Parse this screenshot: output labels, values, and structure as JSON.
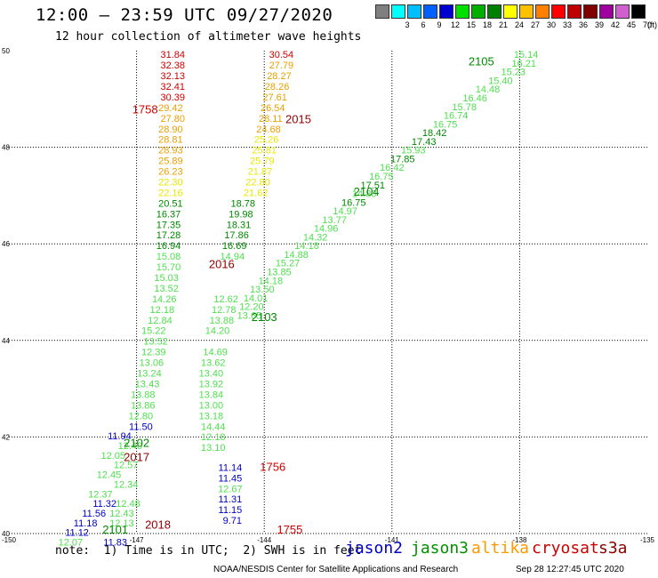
{
  "header": {
    "title": "12:00 – 23:59 UTC 09/27/2020",
    "subtitle": "12 hour collection of altimeter wave heights"
  },
  "legend": {
    "unit": "(ft)",
    "items": [
      {
        "label": "",
        "color": "#7f7f7f"
      },
      {
        "label": "3",
        "color": "#00ffff"
      },
      {
        "label": "6",
        "color": "#00bfff"
      },
      {
        "label": "9",
        "color": "#0060ff"
      },
      {
        "label": "12",
        "color": "#0000d0"
      },
      {
        "label": "15",
        "color": "#00e000"
      },
      {
        "label": "18",
        "color": "#00b000"
      },
      {
        "label": "21",
        "color": "#008000"
      },
      {
        "label": "24",
        "color": "#ffff00"
      },
      {
        "label": "27",
        "color": "#ffc000"
      },
      {
        "label": "30",
        "color": "#ff8000"
      },
      {
        "label": "33",
        "color": "#ff0000"
      },
      {
        "label": "36",
        "color": "#c00000"
      },
      {
        "label": "39",
        "color": "#800000"
      },
      {
        "label": "42",
        "color": "#a000a0"
      },
      {
        "label": "45",
        "color": "#d060d0"
      },
      {
        "label": "70",
        "color": "#000000"
      }
    ]
  },
  "map": {
    "xticks": [
      "-150",
      "-147",
      "-144",
      "-141",
      "-138",
      "-135"
    ],
    "yticks": [
      "50",
      "48",
      "46",
      "44",
      "42",
      "40"
    ],
    "colors": {
      "j2": "#0000c8",
      "j3light": "#50e050",
      "j3dark": "#008800",
      "alt_yellow": "#e8e800",
      "alt_orange": "#e8a000",
      "red": "#d00000",
      "darkred": "#900000"
    },
    "track_labels": [
      {
        "text": "1758",
        "lon": -146.8,
        "lat": 48.7,
        "color": "red"
      },
      {
        "text": "2015",
        "lon": -143.2,
        "lat": 48.5,
        "color": "darkred"
      },
      {
        "text": "2105",
        "lon": -138.9,
        "lat": 49.7,
        "color": "j3dark"
      },
      {
        "text": "2104",
        "lon": -141.6,
        "lat": 47.0,
        "color": "j3dark"
      },
      {
        "text": "2016",
        "lon": -145.0,
        "lat": 45.5,
        "color": "darkred"
      },
      {
        "text": "2103",
        "lon": -144.0,
        "lat": 44.4,
        "color": "j3dark"
      },
      {
        "text": "1756",
        "lon": -143.8,
        "lat": 41.3,
        "color": "red"
      },
      {
        "text": "2102",
        "lon": -147.0,
        "lat": 41.8,
        "color": "j3dark"
      },
      {
        "text": "2017",
        "lon": -147.0,
        "lat": 41.5,
        "color": "darkred"
      },
      {
        "text": "2101",
        "lon": -147.5,
        "lat": 40.0,
        "color": "j3dark"
      },
      {
        "text": "2018",
        "lon": -146.5,
        "lat": 40.1,
        "color": "darkred"
      },
      {
        "text": "1755",
        "lon": -143.4,
        "lat": 40.0,
        "color": "red"
      }
    ],
    "track_1758": [
      {
        "v": "31.84",
        "lon": -146.15,
        "lat": 49.85,
        "color": "red"
      },
      {
        "v": "32.38",
        "lon": -146.15,
        "lat": 49.63,
        "color": "red"
      },
      {
        "v": "32.13",
        "lon": -146.15,
        "lat": 49.41,
        "color": "red"
      },
      {
        "v": "32.41",
        "lon": -146.15,
        "lat": 49.19,
        "color": "red"
      },
      {
        "v": "30.39",
        "lon": -146.15,
        "lat": 48.97,
        "color": "red"
      },
      {
        "v": "29.42",
        "lon": -146.2,
        "lat": 48.75,
        "color": "alt_orange"
      },
      {
        "v": "27.80",
        "lon": -146.15,
        "lat": 48.53,
        "color": "alt_orange"
      },
      {
        "v": "28.90",
        "lon": -146.2,
        "lat": 48.31,
        "color": "alt_orange"
      },
      {
        "v": "28.81",
        "lon": -146.2,
        "lat": 48.09,
        "color": "alt_orange"
      },
      {
        "v": "28.93",
        "lon": -146.2,
        "lat": 47.87,
        "color": "alt_orange"
      },
      {
        "v": "25.89",
        "lon": -146.2,
        "lat": 47.65,
        "color": "alt_orange"
      },
      {
        "v": "26.23",
        "lon": -146.2,
        "lat": 47.43,
        "color": "alt_orange"
      },
      {
        "v": "22.30",
        "lon": -146.2,
        "lat": 47.21,
        "color": "alt_yellow"
      },
      {
        "v": "22.16",
        "lon": -146.2,
        "lat": 46.99,
        "color": "alt_yellow"
      },
      {
        "v": "20.51",
        "lon": -146.2,
        "lat": 46.77,
        "color": "j3dark"
      },
      {
        "v": "16.37",
        "lon": -146.25,
        "lat": 46.55,
        "color": "j3dark"
      },
      {
        "v": "17.35",
        "lon": -146.25,
        "lat": 46.33,
        "color": "j3dark"
      },
      {
        "v": "17.28",
        "lon": -146.25,
        "lat": 46.11,
        "color": "j3dark"
      },
      {
        "v": "16.94",
        "lon": -146.25,
        "lat": 45.89,
        "color": "j3dark"
      },
      {
        "v": "15.08",
        "lon": -146.25,
        "lat": 45.67,
        "color": "j3light"
      },
      {
        "v": "15.70",
        "lon": -146.25,
        "lat": 45.45,
        "color": "j3light"
      },
      {
        "v": "15.03",
        "lon": -146.3,
        "lat": 45.23,
        "color": "j3light"
      },
      {
        "v": "13.52",
        "lon": -146.3,
        "lat": 45.01,
        "color": "j3light"
      },
      {
        "v": "14.26",
        "lon": -146.35,
        "lat": 44.79,
        "color": "j3light"
      },
      {
        "v": "12.18",
        "lon": -146.4,
        "lat": 44.57,
        "color": "j3light"
      },
      {
        "v": "12.84",
        "lon": -146.45,
        "lat": 44.35,
        "color": "j3light"
      },
      {
        "v": "15.22",
        "lon": -146.6,
        "lat": 44.13,
        "color": "j3light"
      },
      {
        "v": "13.52",
        "lon": -146.55,
        "lat": 43.91,
        "color": "j3light"
      },
      {
        "v": "12.39",
        "lon": -146.6,
        "lat": 43.69,
        "color": "j3light"
      },
      {
        "v": "13.06",
        "lon": -146.65,
        "lat": 43.47,
        "color": "j3light"
      },
      {
        "v": "13.24",
        "lon": -146.7,
        "lat": 43.25,
        "color": "j3light"
      },
      {
        "v": "13.43",
        "lon": -146.75,
        "lat": 43.03,
        "color": "j3light"
      },
      {
        "v": "13.88",
        "lon": -146.85,
        "lat": 42.81,
        "color": "j3light"
      },
      {
        "v": "13.86",
        "lon": -146.85,
        "lat": 42.59,
        "color": "j3light"
      },
      {
        "v": "12.80",
        "lon": -146.9,
        "lat": 42.37,
        "color": "j3light"
      }
    ],
    "track_2015": [
      {
        "v": "30.54",
        "lon": -143.6,
        "lat": 49.85,
        "color": "red"
      },
      {
        "v": "27.79",
        "lon": -143.6,
        "lat": 49.63,
        "color": "alt_orange"
      },
      {
        "v": "28.27",
        "lon": -143.65,
        "lat": 49.41,
        "color": "alt_orange"
      },
      {
        "v": "28.26",
        "lon": -143.7,
        "lat": 49.19,
        "color": "alt_orange"
      },
      {
        "v": "27.61",
        "lon": -143.75,
        "lat": 48.97,
        "color": "alt_orange"
      },
      {
        "v": "26.54",
        "lon": -143.8,
        "lat": 48.75,
        "color": "alt_orange"
      },
      {
        "v": "28.11",
        "lon": -143.85,
        "lat": 48.53,
        "color": "alt_orange"
      },
      {
        "v": "24.68",
        "lon": -143.9,
        "lat": 48.31,
        "color": "alt_orange"
      },
      {
        "v": "25.26",
        "lon": -143.95,
        "lat": 48.09,
        "color": "alt_yellow"
      },
      {
        "v": "25.81",
        "lon": -144.0,
        "lat": 47.87,
        "color": "alt_yellow"
      },
      {
        "v": "25.79",
        "lon": -144.05,
        "lat": 47.65,
        "color": "alt_yellow"
      },
      {
        "v": "21.87",
        "lon": -144.1,
        "lat": 47.43,
        "color": "alt_yellow"
      },
      {
        "v": "22.80",
        "lon": -144.15,
        "lat": 47.21,
        "color": "alt_yellow"
      },
      {
        "v": "21.62",
        "lon": -144.2,
        "lat": 46.99,
        "color": "alt_yellow"
      },
      {
        "v": "18.78",
        "lon": -144.5,
        "lat": 46.77,
        "color": "j3dark"
      },
      {
        "v": "19.98",
        "lon": -144.55,
        "lat": 46.55,
        "color": "j3dark"
      },
      {
        "v": "18.31",
        "lon": -144.6,
        "lat": 46.33,
        "color": "j3dark"
      },
      {
        "v": "17.86",
        "lon": -144.65,
        "lat": 46.11,
        "color": "j3dark"
      },
      {
        "v": "16.69",
        "lon": -144.7,
        "lat": 45.89,
        "color": "j3dark"
      },
      {
        "v": "14.94",
        "lon": -144.75,
        "lat": 45.67,
        "color": "j3light"
      },
      {
        "v": "12.62",
        "lon": -144.9,
        "lat": 44.79,
        "color": "j3light"
      },
      {
        "v": "12.78",
        "lon": -144.95,
        "lat": 44.57,
        "color": "j3light"
      },
      {
        "v": "13.88",
        "lon": -145.0,
        "lat": 44.35,
        "color": "j3light"
      },
      {
        "v": "14.20",
        "lon": -145.1,
        "lat": 44.13,
        "color": "j3light"
      },
      {
        "v": "14.69",
        "lon": -145.15,
        "lat": 43.69,
        "color": "j3light"
      },
      {
        "v": "13.62",
        "lon": -145.2,
        "lat": 43.47,
        "color": "j3light"
      },
      {
        "v": "13.40",
        "lon": -145.25,
        "lat": 43.25,
        "color": "j3light"
      },
      {
        "v": "13.92",
        "lon": -145.25,
        "lat": 43.03,
        "color": "j3light"
      },
      {
        "v": "13.84",
        "lon": -145.25,
        "lat": 42.81,
        "color": "j3light"
      },
      {
        "v": "13.00",
        "lon": -145.25,
        "lat": 42.59,
        "color": "j3light"
      },
      {
        "v": "13.18",
        "lon": -145.25,
        "lat": 42.37,
        "color": "j3light"
      },
      {
        "v": "14.44",
        "lon": -145.2,
        "lat": 42.15,
        "color": "j3light"
      },
      {
        "v": "12.18",
        "lon": -145.2,
        "lat": 41.93,
        "color": "j3light"
      },
      {
        "v": "13.10",
        "lon": -145.2,
        "lat": 41.71,
        "color": "j3light"
      }
    ],
    "track_2105": [
      {
        "v": "15.14",
        "lon": -137.85,
        "lat": 49.85,
        "color": "j3light"
      },
      {
        "v": "16.21",
        "lon": -137.9,
        "lat": 49.67,
        "color": "j3light"
      },
      {
        "v": "15.23",
        "lon": -138.15,
        "lat": 49.49,
        "color": "j3light"
      },
      {
        "v": "15.40",
        "lon": -138.45,
        "lat": 49.31,
        "color": "j3light"
      },
      {
        "v": "14.48",
        "lon": -138.75,
        "lat": 49.13,
        "color": "j3light"
      },
      {
        "v": "16.46",
        "lon": -139.05,
        "lat": 48.95,
        "color": "j3light"
      },
      {
        "v": "15.78",
        "lon": -139.3,
        "lat": 48.77,
        "color": "j3light"
      },
      {
        "v": "16.74",
        "lon": -139.5,
        "lat": 48.59,
        "color": "j3light"
      },
      {
        "v": "16.75",
        "lon": -139.75,
        "lat": 48.41,
        "color": "j3light"
      },
      {
        "v": "18.42",
        "lon": -140.0,
        "lat": 48.23,
        "color": "j3dark"
      },
      {
        "v": "17.43",
        "lon": -140.25,
        "lat": 48.05,
        "color": "j3dark"
      },
      {
        "v": "15.93",
        "lon": -140.5,
        "lat": 47.87,
        "color": "j3light"
      },
      {
        "v": "17.85",
        "lon": -140.75,
        "lat": 47.69,
        "color": "j3dark"
      },
      {
        "v": "16.42",
        "lon": -141.0,
        "lat": 47.51,
        "color": "j3light"
      },
      {
        "v": "16.75",
        "lon": -141.25,
        "lat": 47.33,
        "color": "j3light"
      },
      {
        "v": "17.51",
        "lon": -141.45,
        "lat": 47.15,
        "color": "j3dark"
      },
      {
        "v": "14.80",
        "lon": -141.65,
        "lat": 46.97,
        "color": "j3light"
      },
      {
        "v": "16.75",
        "lon": -141.9,
        "lat": 46.79,
        "color": "j3dark"
      },
      {
        "v": "14.97",
        "lon": -142.1,
        "lat": 46.61,
        "color": "j3light"
      },
      {
        "v": "13.77",
        "lon": -142.35,
        "lat": 46.43,
        "color": "j3light"
      },
      {
        "v": "14.96",
        "lon": -142.55,
        "lat": 46.25,
        "color": "j3light"
      },
      {
        "v": "14.32",
        "lon": -142.8,
        "lat": 46.07,
        "color": "j3light"
      },
      {
        "v": "14.18",
        "lon": -143.0,
        "lat": 45.89,
        "color": "j3light"
      },
      {
        "v": "14.88",
        "lon": -143.25,
        "lat": 45.71,
        "color": "j3light"
      },
      {
        "v": "15.27",
        "lon": -143.45,
        "lat": 45.53,
        "color": "j3light"
      },
      {
        "v": "13.85",
        "lon": -143.65,
        "lat": 45.35,
        "color": "j3light"
      },
      {
        "v": "14.18",
        "lon": -143.85,
        "lat": 45.17,
        "color": "j3light"
      },
      {
        "v": "13.50",
        "lon": -144.05,
        "lat": 44.99,
        "color": "j3light"
      },
      {
        "v": "14.01",
        "lon": -144.2,
        "lat": 44.81,
        "color": "j3light"
      },
      {
        "v": "12.20",
        "lon": -144.3,
        "lat": 44.63,
        "color": "j3light"
      },
      {
        "v": "13.65",
        "lon": -144.35,
        "lat": 44.45,
        "color": "j3light"
      }
    ],
    "track_2102": [
      {
        "v": "11.50",
        "lon": -146.9,
        "lat": 42.15,
        "color": "j2"
      },
      {
        "v": "11.94",
        "lon": -147.4,
        "lat": 41.95,
        "color": "j2"
      },
      {
        "v": "12.40",
        "lon": -147.15,
        "lat": 41.75,
        "color": "j3light"
      },
      {
        "v": "12.05",
        "lon": -147.55,
        "lat": 41.55,
        "color": "j3light"
      },
      {
        "v": "12.57",
        "lon": -147.25,
        "lat": 41.35,
        "color": "j3light"
      },
      {
        "v": "12.45",
        "lon": -147.65,
        "lat": 41.15,
        "color": "j3light"
      },
      {
        "v": "12.34",
        "lon": -147.25,
        "lat": 40.95,
        "color": "j3light"
      },
      {
        "v": "12.37",
        "lon": -147.85,
        "lat": 40.75,
        "color": "j3light"
      },
      {
        "v": "11.32",
        "lon": -147.75,
        "lat": 40.55,
        "color": "j2"
      },
      {
        "v": "12.48",
        "lon": -147.2,
        "lat": 40.55,
        "color": "j3light"
      },
      {
        "v": "11.56",
        "lon": -148.0,
        "lat": 40.35,
        "color": "j2"
      },
      {
        "v": "12.43",
        "lon": -147.35,
        "lat": 40.35,
        "color": "j3light"
      },
      {
        "v": "11.18",
        "lon": -148.2,
        "lat": 40.15,
        "color": "j2"
      },
      {
        "v": "12.13",
        "lon": -147.35,
        "lat": 40.15,
        "color": "j3light"
      },
      {
        "v": "11.12",
        "lon": -148.4,
        "lat": 39.95,
        "color": "j2"
      },
      {
        "v": "11.83",
        "lon": -147.5,
        "lat": 39.75,
        "color": "j2"
      },
      {
        "v": "12.07",
        "lon": -148.55,
        "lat": 39.75,
        "color": "j3light"
      }
    ],
    "track_1756": [
      {
        "v": "11.14",
        "lon": -144.8,
        "lat": 41.3,
        "color": "j2"
      },
      {
        "v": "11.45",
        "lon": -144.8,
        "lat": 41.08,
        "color": "j2"
      },
      {
        "v": "12.67",
        "lon": -144.8,
        "lat": 40.86,
        "color": "j3light"
      },
      {
        "v": "11.31",
        "lon": -144.8,
        "lat": 40.64,
        "color": "j2"
      },
      {
        "v": "11.15",
        "lon": -144.8,
        "lat": 40.42,
        "color": "j2"
      },
      {
        "v": "9.71",
        "lon": -144.75,
        "lat": 40.2,
        "color": "j2"
      }
    ]
  },
  "footer": {
    "note": "note:  1) Time is in UTC;  2) SWH is in feet",
    "satellites": [
      {
        "name": "jason2",
        "color": "#0000c8",
        "x": 388
      },
      {
        "name": "jason3",
        "color": "#009000",
        "x": 462
      },
      {
        "name": "altika",
        "color": "#ff9900",
        "x": 530
      },
      {
        "name": "cryosat",
        "color": "#cc0000",
        "x": 598
      },
      {
        "name": "s3a",
        "color": "#8b0000",
        "x": 673
      }
    ],
    "credit": "NOAA/NESDIS Center for Satellite Applications and Research",
    "timestamp": "Sep 28 12:27:45 UTC 2020"
  }
}
